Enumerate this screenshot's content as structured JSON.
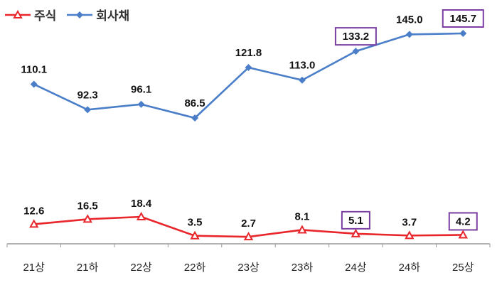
{
  "chart_data": {
    "type": "line",
    "categories": [
      "21상",
      "21하",
      "22상",
      "22하",
      "23상",
      "23하",
      "24상",
      "24하",
      "25상"
    ],
    "series": [
      {
        "name": "주식",
        "color": "#e8262b",
        "marker": "triangle",
        "values": [
          12.6,
          16.5,
          18.4,
          3.5,
          2.7,
          8.1,
          5.1,
          3.7,
          4.2
        ],
        "labels": [
          "12.6",
          "16.5",
          "18.4",
          "3.5",
          "2.7",
          "8.1",
          "5.1",
          "3.7",
          "4.2"
        ],
        "highlighted": [
          6,
          8
        ]
      },
      {
        "name": "회사채",
        "color": "#4a7ec9",
        "marker": "diamond",
        "values": [
          110.1,
          92.3,
          96.1,
          86.5,
          121.8,
          113.0,
          133.2,
          145.0,
          145.7
        ],
        "labels": [
          "110.1",
          "92.3",
          "96.1",
          "86.5",
          "121.8",
          "113.0",
          "133.2",
          "145.0",
          "145.7"
        ],
        "highlighted": [
          6,
          8
        ]
      }
    ],
    "highlight_box_color": "#7a3fa0",
    "grid": false,
    "legend_position": "top-left",
    "axis_scale": "broken"
  }
}
